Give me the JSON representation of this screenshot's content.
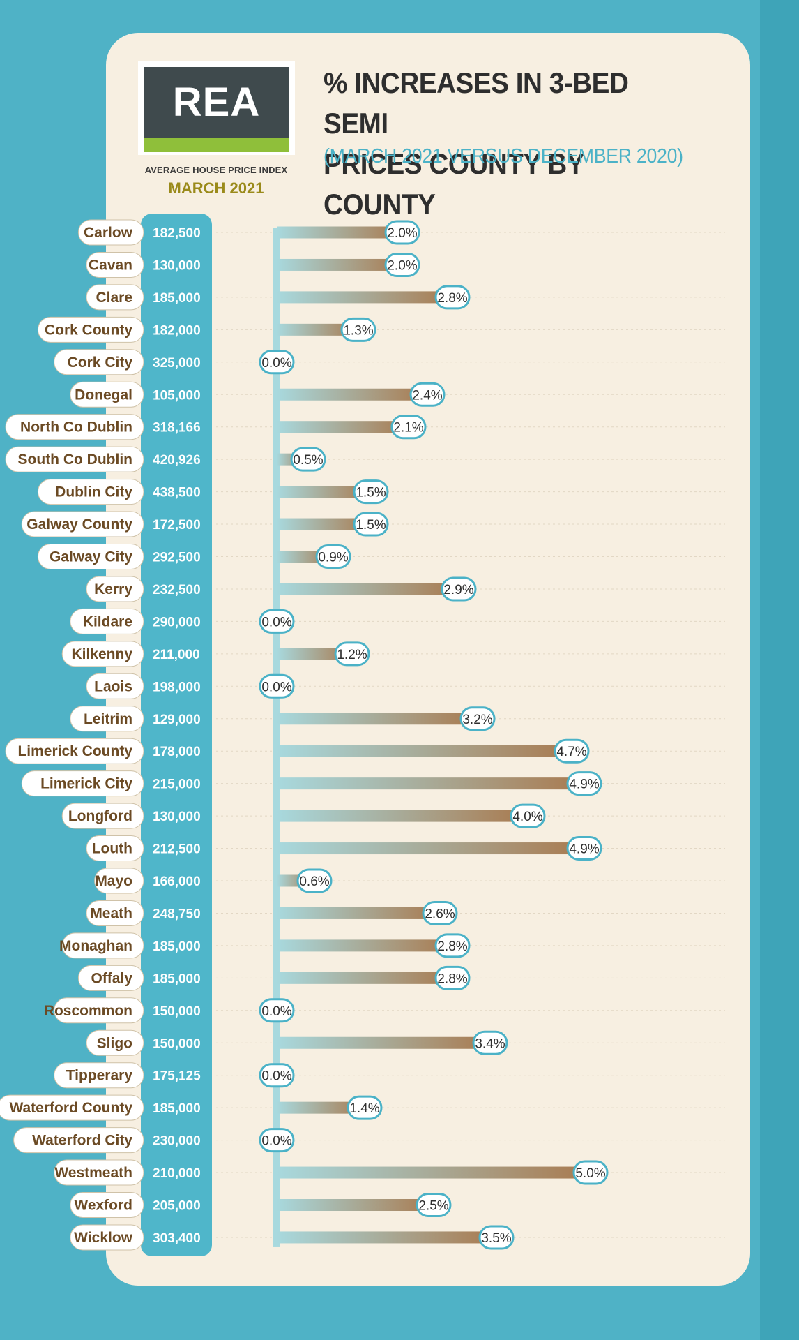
{
  "header": {
    "logo_text": "REA",
    "index_label": "AVERAGE HOUSE PRICE INDEX",
    "index_date": "MARCH 2021",
    "title_line1": "% INCREASES IN 3-BED SEMI",
    "title_line2": "PRICES COUNTY BY COUNTY",
    "subtitle": "(MARCH 2021 VERSUS DECEMBER 2020)"
  },
  "colors": {
    "background": "#4fb2c6",
    "card": "#f7efe1",
    "bar_start": "#a8d9de",
    "bar_end": "#a97a4f",
    "label_border": "#4bb2c7",
    "name_text": "#6b4a24",
    "price_pill": "#4fb6ca"
  },
  "chart_data": {
    "type": "bar",
    "orientation": "horizontal",
    "unit": "%",
    "xlim": [
      0,
      5
    ],
    "categories": [
      "Carlow",
      "Cavan",
      "Clare",
      "Cork County",
      "Cork City",
      "Donegal",
      "North Co Dublin",
      "South Co Dublin",
      "Dublin City",
      "Galway County",
      "Galway City",
      "Kerry",
      "Kildare",
      "Kilkenny",
      "Laois",
      "Leitrim",
      "Limerick County",
      "Limerick City",
      "Longford",
      "Louth",
      "Mayo",
      "Meath",
      "Monaghan",
      "Offaly",
      "Roscommon",
      "Sligo",
      "Tipperary",
      "Waterford County",
      "Waterford City",
      "Westmeath",
      "Wexford",
      "Wicklow"
    ],
    "prices": [
      "182,500",
      "130,000",
      "185,000",
      "182,000",
      "325,000",
      "105,000",
      "318,166",
      "420,926",
      "438,500",
      "172,500",
      "292,500",
      "232,500",
      "290,000",
      "211,000",
      "198,000",
      "129,000",
      "178,000",
      "215,000",
      "130,000",
      "212,500",
      "166,000",
      "248,750",
      "185,000",
      "185,000",
      "150,000",
      "150,000",
      "175,125",
      "185,000",
      "230,000",
      "210,000",
      "205,000",
      "303,400"
    ],
    "values": [
      2.0,
      2.0,
      2.8,
      1.3,
      0.0,
      2.4,
      2.1,
      0.5,
      1.5,
      1.5,
      0.9,
      2.9,
      0.0,
      1.2,
      0.0,
      3.2,
      4.7,
      4.9,
      4.0,
      4.9,
      0.6,
      2.6,
      2.8,
      2.8,
      0.0,
      3.4,
      0.0,
      1.4,
      0.0,
      5.0,
      2.5,
      3.5
    ],
    "value_labels": [
      "2.0%",
      "2.0%",
      "2.8%",
      "1.3%",
      "0.0%",
      "2.4%",
      "2.1%",
      "0.5%",
      "1.5%",
      "1.5%",
      "0.9%",
      "2.9%",
      "0.0%",
      "1.2%",
      "0.0%",
      "3.2%",
      "4.7%",
      "4.9%",
      "4.0%",
      "4.9%",
      "0.6%",
      "2.6%",
      "2.8%",
      "2.8%",
      "0.0%",
      "3.4%",
      "0.0%",
      "1.4%",
      "0.0%",
      "5.0%",
      "2.5%",
      "3.5%"
    ]
  }
}
